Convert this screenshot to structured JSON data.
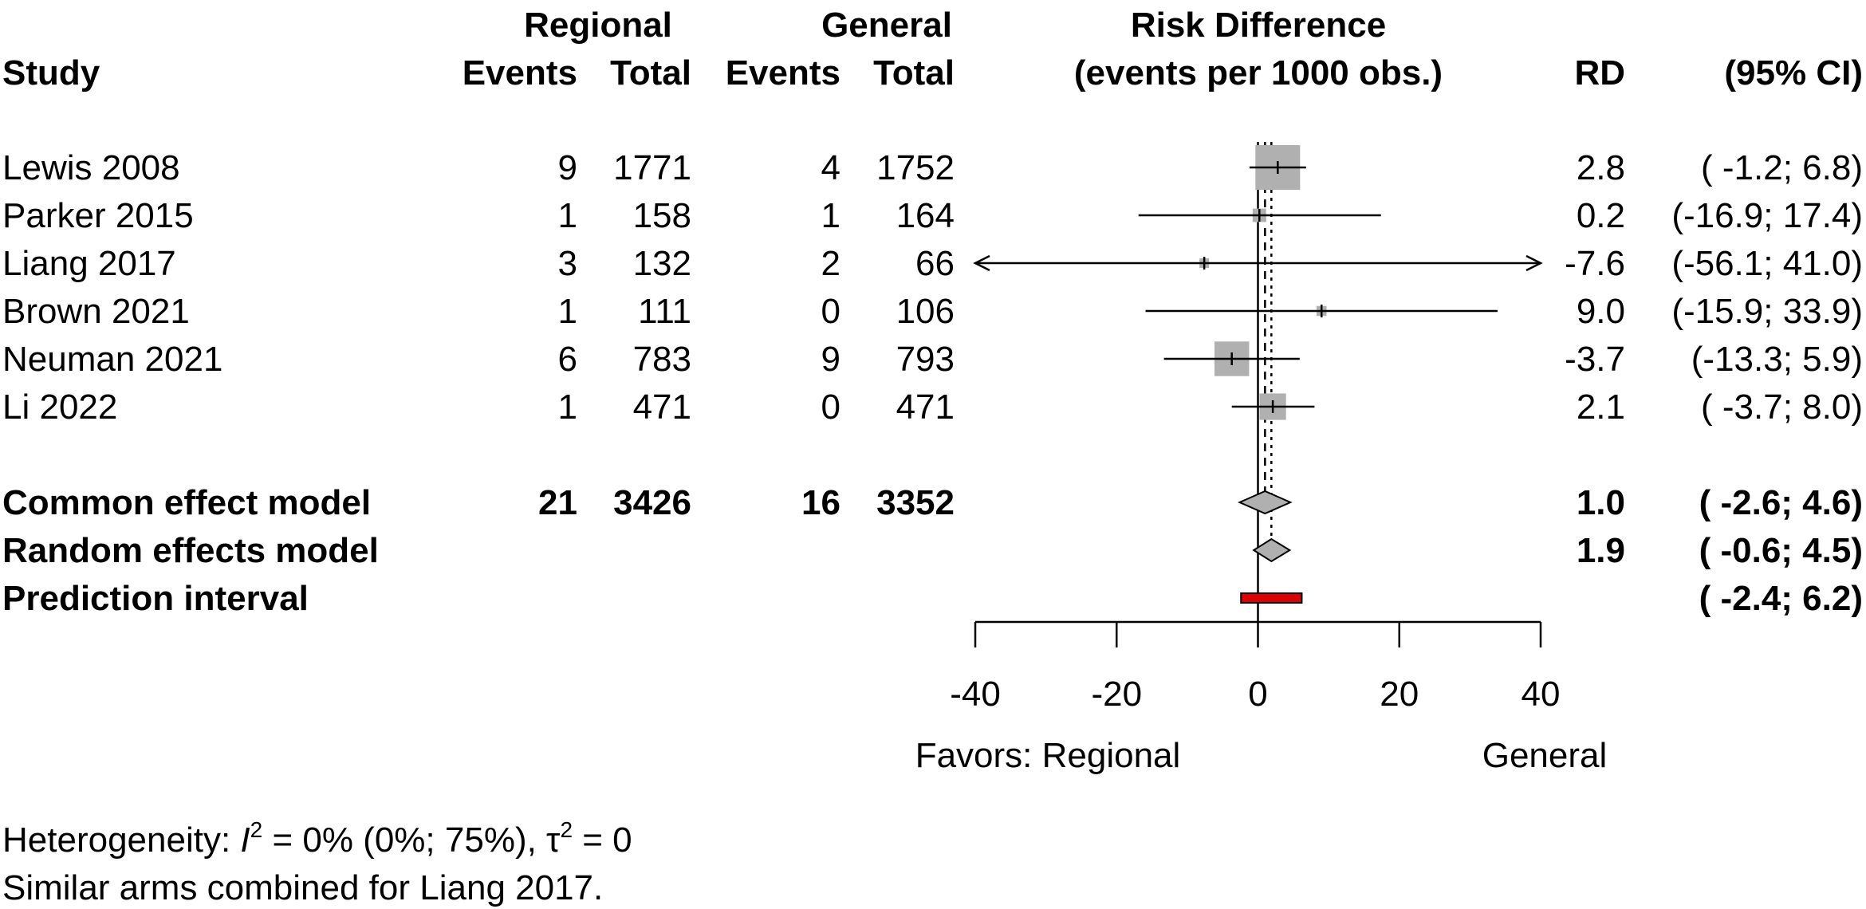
{
  "chart_data": {
    "type": "forest",
    "header": {
      "group1": "Regional",
      "group2": "General",
      "study": "Study",
      "events": "Events",
      "total": "Total",
      "measure_line1": "Risk Difference",
      "measure_line2": "(events per 1000 obs.)",
      "rd": "RD",
      "ci": "(95% CI)"
    },
    "studies": [
      {
        "name": "Lewis 2008",
        "e1": "9",
        "n1": "1771",
        "e2": "4",
        "n2": "1752",
        "rd": 2.8,
        "lo": -1.2,
        "hi": 6.8,
        "rd_text": "2.8",
        "ci_text": "( -1.2;  6.8)",
        "weight": 1.0
      },
      {
        "name": "Parker 2015",
        "e1": "1",
        "n1": "158",
        "e2": "1",
        "n2": "164",
        "rd": 0.2,
        "lo": -16.9,
        "hi": 17.4,
        "rd_text": "0.2",
        "ci_text": "(-16.9; 17.4)",
        "weight": 0.09
      },
      {
        "name": "Liang 2017",
        "e1": "3",
        "n1": "132",
        "e2": "2",
        "n2": "66",
        "rd": -7.6,
        "lo": -56.1,
        "hi": 41.0,
        "rd_text": "-7.6",
        "ci_text": "(-56.1; 41.0)",
        "weight": 0.03
      },
      {
        "name": "Brown 2021",
        "e1": "1",
        "n1": "111",
        "e2": "0",
        "n2": "106",
        "rd": 9.0,
        "lo": -15.9,
        "hi": 33.9,
        "rd_text": "9.0",
        "ci_text": "(-15.9; 33.9)",
        "weight": 0.05
      },
      {
        "name": "Neuman 2021",
        "e1": "6",
        "n1": "783",
        "e2": "9",
        "n2": "793",
        "rd": -3.7,
        "lo": -13.3,
        "hi": 5.9,
        "rd_text": "-3.7",
        "ci_text": "(-13.3;  5.9)",
        "weight": 0.6
      },
      {
        "name": "Li 2022",
        "e1": "1",
        "n1": "471",
        "e2": "0",
        "n2": "471",
        "rd": 2.1,
        "lo": -3.7,
        "hi": 8.0,
        "rd_text": "2.1",
        "ci_text": "( -3.7;  8.0)",
        "weight": 0.35
      }
    ],
    "common": {
      "name": "Common effect model",
      "e1": "21",
      "n1": "3426",
      "e2": "16",
      "n2": "3352",
      "rd": 1.0,
      "lo": -2.6,
      "hi": 4.6,
      "rd_text": "1.0",
      "ci_text": "( -2.6;  4.6)"
    },
    "random": {
      "name": "Random effects model",
      "rd": 1.9,
      "lo": -0.6,
      "hi": 4.5,
      "rd_text": "1.9",
      "ci_text": "( -0.6;  4.5)"
    },
    "prediction": {
      "name": "Prediction interval",
      "lo": -2.4,
      "hi": 6.2,
      "ci_text": "( -2.4;  6.2)"
    },
    "xlim": [
      -40,
      40
    ],
    "ticks": [
      -40,
      -20,
      0,
      20,
      40
    ],
    "tick_labels": [
      "-40",
      "-20",
      "0",
      "20",
      "40"
    ],
    "favors_left": "Favors: Regional",
    "favors_right": "General",
    "heterogeneity": {
      "prefix": "Heterogeneity: ",
      "i2_sym": "I",
      "i2_sup": "2",
      "i2_text": " = 0% (0%; 75%), ",
      "tau_sym": "τ",
      "tau_sup": "2",
      "tau_text": " = 0"
    },
    "footnote": "Similar arms combined for Liang 2017.",
    "colors": {
      "box": "#b0b0b0",
      "diamond": "#b0b0b0",
      "prediction": "#dd0000",
      "line": "#000000"
    }
  }
}
